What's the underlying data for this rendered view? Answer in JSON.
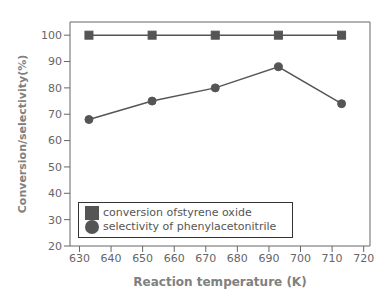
{
  "chart_data": {
    "type": "line",
    "xlabel": "Reaction temperature (K)",
    "ylabel": "Conversion/selectivity(%)",
    "x": [
      633,
      653,
      673,
      693,
      713
    ],
    "series": [
      {
        "name": "conversion ofstyrene oxide",
        "color": "#555555",
        "marker": "square",
        "values": [
          100,
          100,
          100,
          100,
          100
        ]
      },
      {
        "name": "selectivity of phenylacetonitrile",
        "color": "#555555",
        "marker": "circle",
        "values": [
          68,
          75,
          80,
          88,
          74
        ]
      }
    ],
    "xlim": [
      627,
      722
    ],
    "ylim": [
      20,
      105
    ],
    "xticks": [
      630,
      640,
      650,
      660,
      670,
      680,
      690,
      700,
      710,
      720
    ],
    "yticks": [
      20,
      30,
      40,
      50,
      60,
      70,
      80,
      90,
      100
    ],
    "legend": "lower left",
    "grid": false
  }
}
